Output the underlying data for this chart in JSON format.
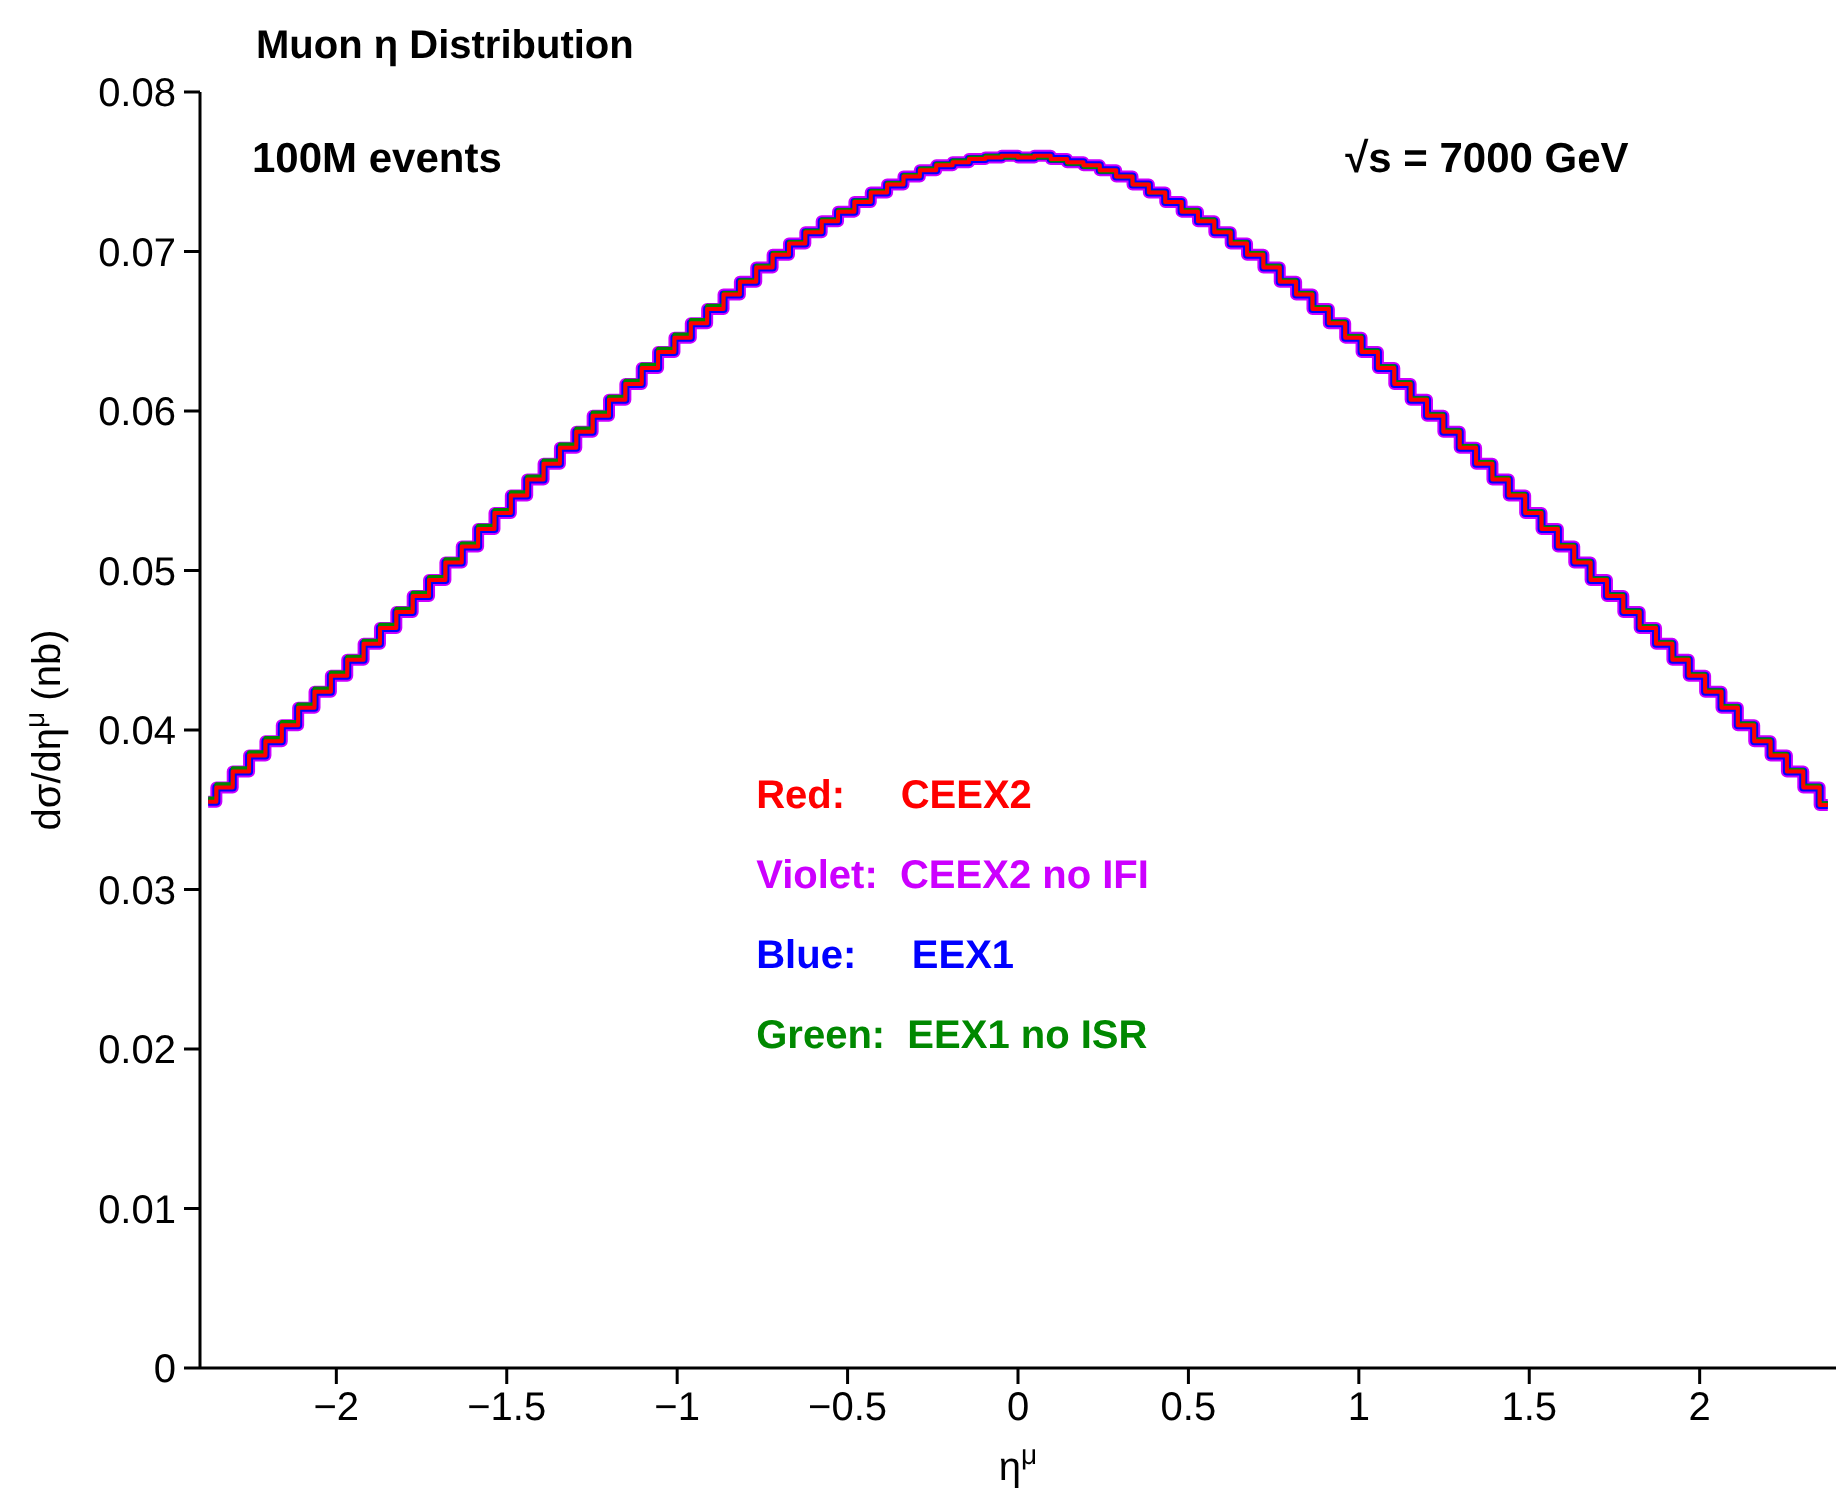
{
  "chart_data": {
    "type": "step",
    "title": "Muon η Distribution",
    "xlabel": "η$^{μ}$",
    "ylabel": "dσ/dη$^{μ}$ (nb)",
    "annotations": [
      "100M events",
      "√s = 7000 GeV"
    ],
    "x": [
      -2.376,
      -2.328,
      -2.28,
      -2.232,
      -2.184,
      -2.136,
      -2.088,
      -2.04,
      -1.992,
      -1.944,
      -1.896,
      -1.848,
      -1.8,
      -1.752,
      -1.704,
      -1.656,
      -1.608,
      -1.56,
      -1.512,
      -1.464,
      -1.416,
      -1.368,
      -1.32,
      -1.272,
      -1.224,
      -1.176,
      -1.128,
      -1.08,
      -1.032,
      -0.984,
      -0.936,
      -0.888,
      -0.84,
      -0.792,
      -0.744,
      -0.696,
      -0.648,
      -0.6,
      -0.552,
      -0.504,
      -0.456,
      -0.408,
      -0.36,
      -0.312,
      -0.264,
      -0.216,
      -0.168,
      -0.12,
      -0.072,
      -0.024,
      0.024,
      0.072,
      0.12,
      0.168,
      0.216,
      0.264,
      0.312,
      0.36,
      0.408,
      0.456,
      0.504,
      0.552,
      0.6,
      0.648,
      0.696,
      0.744,
      0.792,
      0.84,
      0.888,
      0.936,
      0.984,
      1.032,
      1.08,
      1.128,
      1.176,
      1.224,
      1.272,
      1.32,
      1.368,
      1.416,
      1.464,
      1.512,
      1.56,
      1.608,
      1.656,
      1.704,
      1.752,
      1.8,
      1.848,
      1.896,
      1.944,
      1.992,
      2.04,
      2.088,
      2.136,
      2.184,
      2.232,
      2.28,
      2.328,
      2.376
    ],
    "series": [
      {
        "name": "Red:     CEEX2",
        "color": "#ff0000",
        "values": [
          0.0355,
          0.0364,
          0.0374,
          0.0384,
          0.0393,
          0.0403,
          0.0414,
          0.0424,
          0.0434,
          0.0444,
          0.0454,
          0.0464,
          0.0474,
          0.0484,
          0.0494,
          0.0505,
          0.0515,
          0.0526,
          0.0536,
          0.0547,
          0.0557,
          0.0567,
          0.0577,
          0.0587,
          0.0597,
          0.0607,
          0.0617,
          0.0627,
          0.0637,
          0.0646,
          0.0655,
          0.0664,
          0.0673,
          0.0681,
          0.069,
          0.0698,
          0.0705,
          0.0712,
          0.0719,
          0.0725,
          0.0731,
          0.0737,
          0.0742,
          0.0747,
          0.0751,
          0.0754,
          0.0756,
          0.0758,
          0.0759,
          0.076,
          0.0759,
          0.076,
          0.0758,
          0.0756,
          0.0754,
          0.0751,
          0.0747,
          0.0742,
          0.0737,
          0.0731,
          0.0725,
          0.0719,
          0.0712,
          0.0705,
          0.0698,
          0.069,
          0.0681,
          0.0673,
          0.0664,
          0.0655,
          0.0646,
          0.0637,
          0.0627,
          0.0617,
          0.0607,
          0.0597,
          0.0587,
          0.0577,
          0.0567,
          0.0557,
          0.0547,
          0.0536,
          0.0526,
          0.0515,
          0.0505,
          0.0494,
          0.0484,
          0.0474,
          0.0464,
          0.0454,
          0.0444,
          0.0434,
          0.0424,
          0.0414,
          0.0403,
          0.0393,
          0.0384,
          0.0374,
          0.0364,
          0.0353
        ]
      },
      {
        "name": "Violet:  CEEX2 no IFI",
        "color": "#cc00ff",
        "values": [
          0.0355,
          0.0364,
          0.0374,
          0.0384,
          0.0393,
          0.0403,
          0.0414,
          0.0424,
          0.0434,
          0.0444,
          0.0454,
          0.0464,
          0.0474,
          0.0484,
          0.0494,
          0.0505,
          0.0515,
          0.0526,
          0.0536,
          0.0547,
          0.0557,
          0.0567,
          0.0577,
          0.0587,
          0.0597,
          0.0607,
          0.0617,
          0.0627,
          0.0637,
          0.0646,
          0.0655,
          0.0664,
          0.0673,
          0.0681,
          0.069,
          0.0698,
          0.0705,
          0.0712,
          0.0719,
          0.0725,
          0.0731,
          0.0737,
          0.0742,
          0.0747,
          0.0751,
          0.0754,
          0.0756,
          0.0758,
          0.0759,
          0.076,
          0.0759,
          0.076,
          0.0758,
          0.0756,
          0.0754,
          0.0751,
          0.0747,
          0.0742,
          0.0737,
          0.0731,
          0.0725,
          0.0719,
          0.0712,
          0.0705,
          0.0698,
          0.069,
          0.0681,
          0.0673,
          0.0664,
          0.0655,
          0.0646,
          0.0637,
          0.0627,
          0.0617,
          0.0607,
          0.0597,
          0.0587,
          0.0577,
          0.0567,
          0.0557,
          0.0547,
          0.0536,
          0.0526,
          0.0515,
          0.0505,
          0.0494,
          0.0484,
          0.0474,
          0.0464,
          0.0454,
          0.0444,
          0.0434,
          0.0424,
          0.0414,
          0.0403,
          0.0393,
          0.0384,
          0.0374,
          0.0364,
          0.0353
        ]
      },
      {
        "name": "Blue:     EEX1",
        "color": "#0000ff",
        "values": [
          0.0355,
          0.0364,
          0.0374,
          0.0384,
          0.0393,
          0.0403,
          0.0414,
          0.0424,
          0.0434,
          0.0444,
          0.0454,
          0.0464,
          0.0474,
          0.0484,
          0.0494,
          0.0505,
          0.0515,
          0.0526,
          0.0536,
          0.0547,
          0.0557,
          0.0567,
          0.0577,
          0.0587,
          0.0597,
          0.0607,
          0.0617,
          0.0627,
          0.0637,
          0.0646,
          0.0655,
          0.0664,
          0.0673,
          0.0681,
          0.069,
          0.0698,
          0.0705,
          0.0712,
          0.0719,
          0.0725,
          0.0731,
          0.0737,
          0.0742,
          0.0747,
          0.0751,
          0.0754,
          0.0756,
          0.0758,
          0.0759,
          0.076,
          0.0759,
          0.076,
          0.0758,
          0.0756,
          0.0754,
          0.0751,
          0.0747,
          0.0742,
          0.0737,
          0.0731,
          0.0725,
          0.0719,
          0.0712,
          0.0705,
          0.0698,
          0.069,
          0.0681,
          0.0673,
          0.0664,
          0.0655,
          0.0646,
          0.0637,
          0.0627,
          0.0617,
          0.0607,
          0.0597,
          0.0587,
          0.0577,
          0.0567,
          0.0557,
          0.0547,
          0.0536,
          0.0526,
          0.0515,
          0.0505,
          0.0494,
          0.0484,
          0.0474,
          0.0464,
          0.0454,
          0.0444,
          0.0434,
          0.0424,
          0.0414,
          0.0403,
          0.0393,
          0.0384,
          0.0374,
          0.0364,
          0.0353
        ]
      },
      {
        "name": "Green:  EEX1 no ISR",
        "color": "#008800",
        "values": [
          0.0357,
          0.0366,
          0.0376,
          0.0386,
          0.0395,
          0.0405,
          0.0416,
          0.0426,
          0.0436,
          0.0446,
          0.0456,
          0.0466,
          0.0476,
          0.0486,
          0.0496,
          0.0507,
          0.0517,
          0.0528,
          0.0538,
          0.0549,
          0.0559,
          0.0569,
          0.0579,
          0.0589,
          0.0599,
          0.0609,
          0.0619,
          0.0629,
          0.0639,
          0.0648,
          0.0657,
          0.0666,
          0.0674,
          0.0682,
          0.0691,
          0.0699,
          0.0706,
          0.0713,
          0.072,
          0.0726,
          0.0732,
          0.0738,
          0.0743,
          0.0748,
          0.0752,
          0.0755,
          0.0757,
          0.0759,
          0.076,
          0.0759,
          0.076,
          0.0759,
          0.0757,
          0.0755,
          0.0753,
          0.075,
          0.0747,
          0.0742,
          0.0737,
          0.0731,
          0.0726,
          0.072,
          0.0713,
          0.0706,
          0.0699,
          0.0691,
          0.0682,
          0.0674,
          0.0665,
          0.0656,
          0.0647,
          0.0638,
          0.0628,
          0.0618,
          0.0608,
          0.0598,
          0.0588,
          0.0578,
          0.0568,
          0.0558,
          0.0548,
          0.0537,
          0.0527,
          0.0516,
          0.0506,
          0.0495,
          0.0485,
          0.0475,
          0.0465,
          0.0455,
          0.0445,
          0.0435,
          0.0425,
          0.0415,
          0.0404,
          0.0394,
          0.0385,
          0.0375,
          0.0365,
          0.0354
        ]
      }
    ],
    "xlim": [
      -2.4,
      2.4
    ],
    "xticks": [
      {
        "value": -2,
        "label": "−2"
      },
      {
        "value": -1.5,
        "label": "−1.5"
      },
      {
        "value": -1,
        "label": "−1"
      },
      {
        "value": -0.5,
        "label": "−0.5"
      },
      0,
      0.5,
      1,
      1.5,
      2
    ],
    "ylim": [
      0,
      0.08
    ],
    "yticks": [
      0,
      0.01,
      0.02,
      0.03,
      0.04,
      0.05,
      0.06,
      0.07,
      0.08
    ]
  }
}
